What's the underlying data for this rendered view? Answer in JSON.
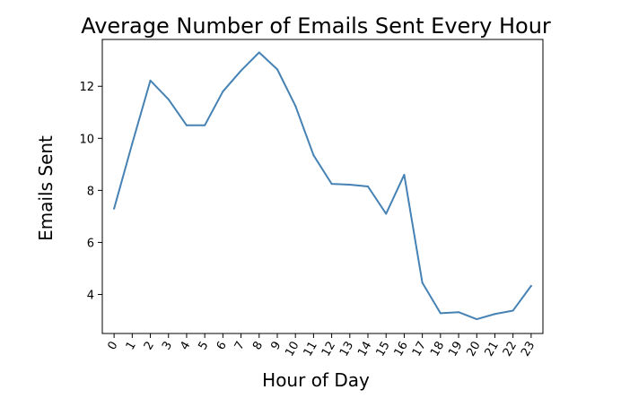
{
  "chart_data": {
    "type": "line",
    "title": "Average Number of Emails Sent Every Hour",
    "xlabel": "Hour of Day",
    "ylabel": "Emails Sent",
    "categories": [
      "0",
      "1",
      "2",
      "3",
      "4",
      "5",
      "6",
      "7",
      "8",
      "9",
      "10",
      "11",
      "12",
      "13",
      "14",
      "15",
      "16",
      "17",
      "18",
      "19",
      "20",
      "21",
      "22",
      "23"
    ],
    "x": [
      0,
      1,
      2,
      3,
      4,
      5,
      6,
      7,
      8,
      9,
      10,
      11,
      12,
      13,
      14,
      15,
      16,
      17,
      18,
      19,
      20,
      21,
      22,
      23
    ],
    "series": [
      {
        "color": "#4682b4",
        "values": [
          7.3,
          9.8,
          12.22,
          11.5,
          10.5,
          10.5,
          11.8,
          12.6,
          13.3,
          12.65,
          11.25,
          9.35,
          8.25,
          8.22,
          8.15,
          7.1,
          8.6,
          4.45,
          3.28,
          3.32,
          3.05,
          3.25,
          3.38,
          4.33
        ]
      }
    ],
    "yticks": [
      4,
      6,
      8,
      10,
      12
    ],
    "ylim": [
      2.5,
      13.8
    ],
    "xlim": [
      -0.65,
      23.65
    ],
    "x_tick_rotation": 60,
    "grid": false,
    "legend": "none"
  }
}
